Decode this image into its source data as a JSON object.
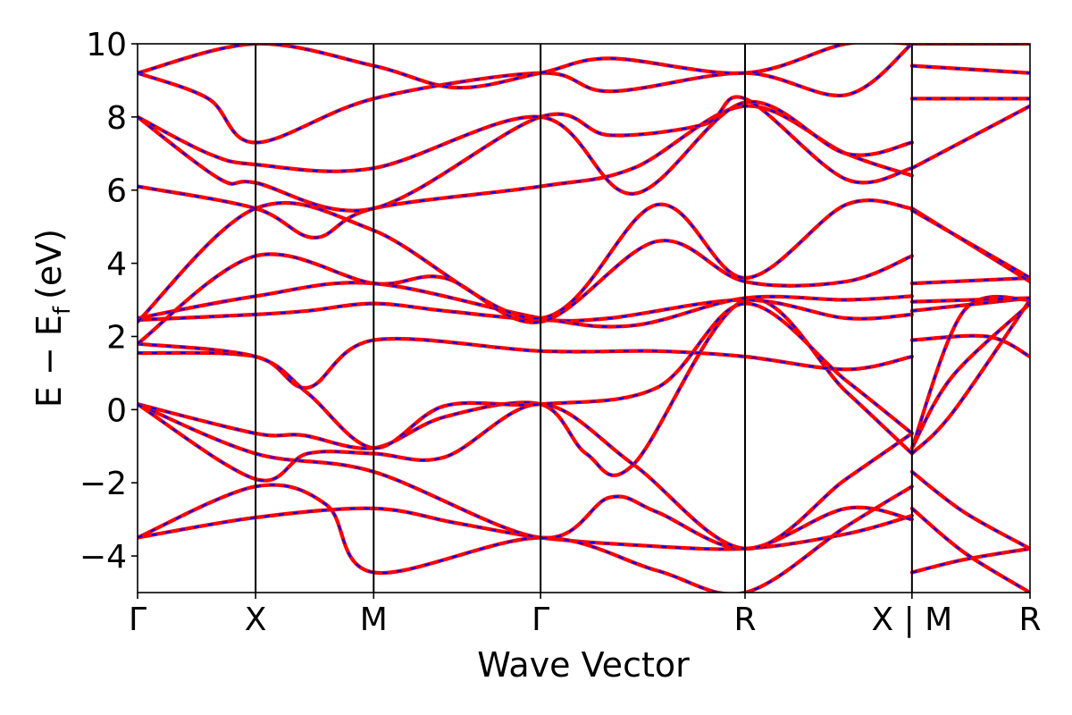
{
  "chart_data": {
    "type": "line",
    "xlabel": "Wave Vector",
    "ylabel": {
      "main": "E − E",
      "sub": "f",
      "unit": "(eV)"
    },
    "ylim": [
      -5,
      10
    ],
    "yticks": [
      -4,
      -2,
      0,
      2,
      4,
      6,
      8,
      10
    ],
    "ytick_labels": [
      "−4",
      "−2",
      "0",
      "2",
      "4",
      "6",
      "8",
      "10"
    ],
    "kpath": {
      "positions": [
        0,
        0.5,
        1.0,
        1.707,
        2.573,
        3.28,
        3.78
      ],
      "labels": [
        "Γ",
        "X",
        "M",
        "Γ",
        "R",
        "X | M",
        "R"
      ],
      "break_at": 3.28
    },
    "grid": false,
    "legend": "none",
    "colors": {
      "solid": "#ff0000",
      "dashed": "#0000ff"
    },
    "series": [
      {
        "k": [
          0,
          0.5,
          1.0,
          1.35,
          1.707,
          2.1,
          2.573,
          3.0,
          3.28,
          3.28,
          3.5,
          3.78
        ],
        "e": [
          -3.5,
          -2.95,
          -2.7,
          -3.1,
          -3.5,
          -3.7,
          -3.8,
          -3.4,
          -2.9,
          -4.45,
          -4.1,
          -3.8
        ]
      },
      {
        "k": [
          0,
          0.5,
          0.8,
          1.0,
          1.707,
          2.2,
          2.573,
          3.0,
          3.28,
          3.28,
          3.5,
          3.78
        ],
        "e": [
          -3.5,
          -2.1,
          -2.6,
          -4.45,
          -3.5,
          -4.4,
          -5.0,
          -3.2,
          -2.1,
          -2.7,
          -3.9,
          -5.0
        ]
      },
      {
        "k": [
          0,
          0.5,
          1.0,
          1.707,
          2.0,
          2.2,
          2.573,
          3.0,
          3.28,
          3.28,
          3.5,
          3.78
        ],
        "e": [
          0.15,
          -1.2,
          -1.7,
          -3.5,
          -2.4,
          -2.8,
          -3.8,
          -2.7,
          -3.0,
          -1.7,
          -2.8,
          -3.8
        ]
      },
      {
        "k": [
          0,
          0.5,
          0.7,
          1.0,
          1.3,
          1.707,
          1.9,
          2.1,
          2.573,
          3.0,
          3.28,
          3.28,
          3.45,
          3.78
        ],
        "e": [
          0.15,
          -0.65,
          -0.7,
          -1.05,
          -0.2,
          0.15,
          -1.2,
          -1.5,
          3.0,
          0.5,
          -1.2,
          -1.2,
          -0.1,
          3.0
        ]
      },
      {
        "k": [
          0,
          0.5,
          0.72,
          1.0,
          1.3,
          1.707,
          2.1,
          2.573,
          3.0,
          3.28,
          3.28,
          3.45,
          3.78
        ],
        "e": [
          0.15,
          -1.9,
          -1.2,
          -1.2,
          -1.3,
          0.15,
          -1.5,
          -3.8,
          -1.9,
          -0.65,
          -1.05,
          0.9,
          2.9
        ]
      },
      {
        "k": [
          0,
          0.5,
          0.72,
          1.0,
          1.707,
          2.2,
          2.573,
          3.0,
          3.28,
          3.28,
          3.6,
          3.78
        ],
        "e": [
          1.55,
          1.45,
          0.6,
          1.9,
          1.6,
          1.6,
          1.45,
          1.1,
          1.45,
          1.9,
          2.0,
          1.45
        ]
      },
      {
        "k": [
          0,
          0.5,
          0.72,
          1.0,
          1.3,
          1.707,
          2.2,
          2.573,
          3.0,
          3.28,
          3.28,
          3.5,
          3.78
        ],
        "e": [
          1.8,
          1.45,
          0.45,
          -1.05,
          0.1,
          0.15,
          0.6,
          2.9,
          0.8,
          -0.65,
          -1.05,
          2.7,
          3.0
        ]
      },
      {
        "k": [
          0,
          0.5,
          0.72,
          1.0,
          1.3,
          1.707,
          2.0,
          2.573,
          3.0,
          3.28,
          3.28,
          3.78
        ],
        "e": [
          2.45,
          2.6,
          2.7,
          2.9,
          2.7,
          2.45,
          2.5,
          3.0,
          2.5,
          2.6,
          2.7,
          3.05
        ]
      },
      {
        "k": [
          0,
          0.5,
          1.0,
          1.707,
          2.1,
          2.573,
          3.0,
          3.28,
          3.28,
          3.78
        ],
        "e": [
          2.5,
          3.1,
          3.45,
          2.5,
          2.3,
          3.05,
          3.0,
          3.1,
          2.95,
          3.05
        ]
      },
      {
        "k": [
          0,
          0.5,
          1.0,
          1.3,
          1.707,
          2.2,
          2.573,
          3.0,
          3.28,
          3.28,
          3.78
        ],
        "e": [
          1.8,
          4.2,
          3.45,
          3.6,
          2.4,
          4.6,
          3.5,
          3.5,
          4.2,
          3.45,
          3.6
        ]
      },
      {
        "k": [
          0,
          0.5,
          1.0,
          1.707,
          2.2,
          2.573,
          3.0,
          3.28,
          3.28,
          3.78
        ],
        "e": [
          2.4,
          5.5,
          4.9,
          2.5,
          5.6,
          3.6,
          5.6,
          5.5,
          5.5,
          3.5
        ]
      },
      {
        "k": [
          0,
          0.5,
          0.75,
          1.0,
          1.707,
          2.1,
          2.573,
          3.0,
          3.28,
          3.28,
          3.78
        ],
        "e": [
          6.1,
          5.5,
          4.7,
          5.5,
          6.1,
          6.6,
          8.3,
          7.0,
          6.4,
          5.45,
          3.6
        ]
      },
      {
        "k": [
          0,
          0.35,
          0.5,
          1.0,
          1.707,
          2.0,
          2.4,
          2.573,
          3.0,
          3.28,
          3.28,
          3.78
        ],
        "e": [
          8.0,
          6.3,
          6.2,
          5.5,
          8.0,
          7.5,
          7.8,
          8.5,
          6.3,
          6.6,
          6.6,
          8.3
        ]
      },
      {
        "k": [
          0,
          0.3,
          0.5,
          1.0,
          1.707,
          2.1,
          2.573,
          3.0,
          3.28,
          3.28,
          3.78
        ],
        "e": [
          8.0,
          7.0,
          6.7,
          6.6,
          8.0,
          5.9,
          8.4,
          7.0,
          7.3,
          8.5,
          8.5
        ]
      },
      {
        "k": [
          0,
          0.3,
          0.5,
          1.0,
          1.707,
          2.0,
          2.573,
          3.0,
          3.28,
          3.28,
          3.78
        ],
        "e": [
          9.2,
          8.5,
          7.3,
          8.5,
          9.2,
          8.7,
          9.2,
          8.6,
          10.0,
          9.4,
          9.2
        ]
      },
      {
        "k": [
          0,
          0.5,
          1.0,
          1.35,
          1.707,
          2.0,
          2.573,
          3.0,
          3.28,
          3.28,
          3.78
        ],
        "e": [
          9.2,
          10.0,
          9.4,
          8.8,
          9.2,
          9.6,
          9.2,
          10.0,
          10.0,
          10.0,
          10.0
        ]
      }
    ]
  }
}
